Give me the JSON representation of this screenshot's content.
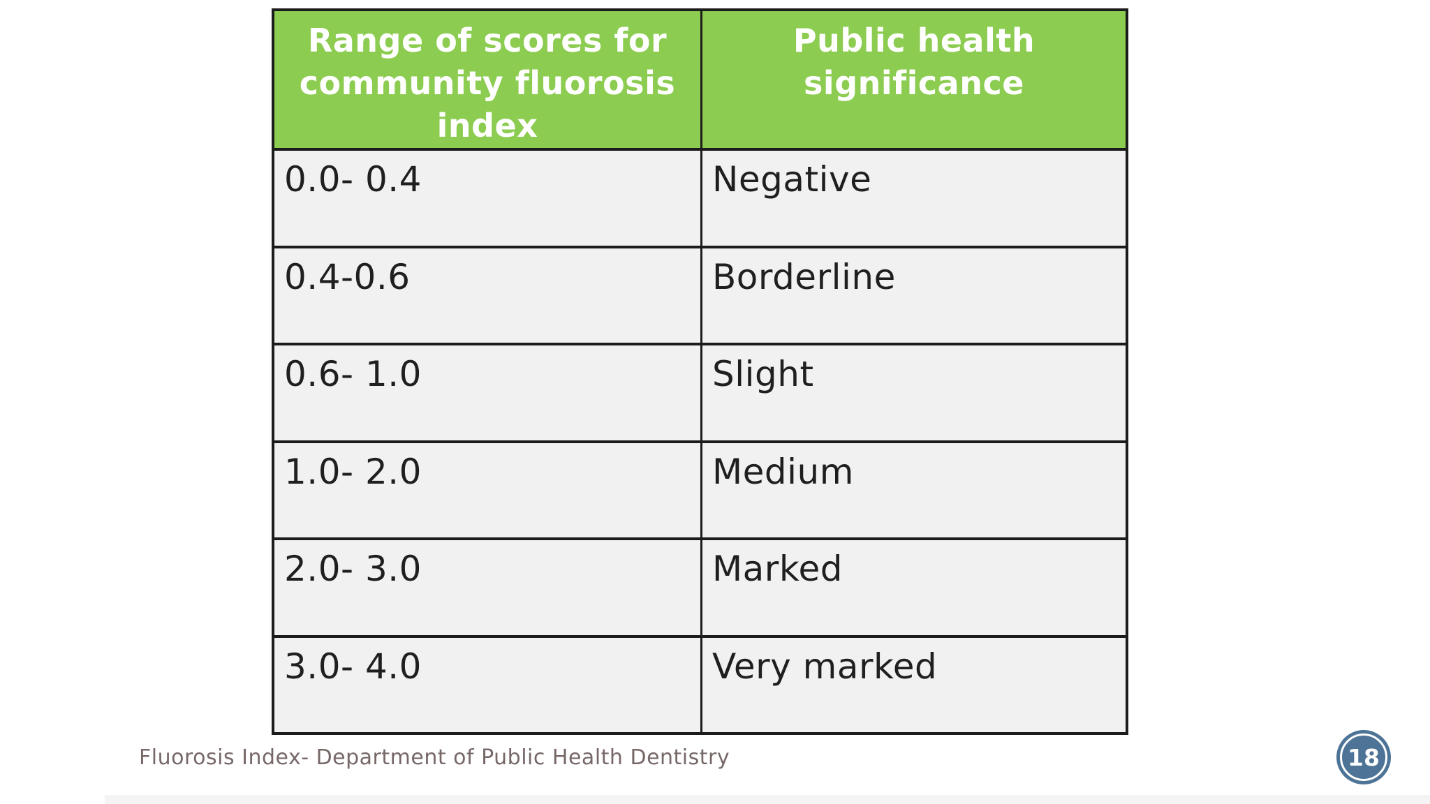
{
  "table": {
    "col_headers": [
      "Range of scores for community fluorosis index",
      "Public health significance"
    ],
    "rows": [
      {
        "range": "0.0- 0.4",
        "significance": "Negative"
      },
      {
        "range": "0.4-0.6",
        "significance": "Borderline"
      },
      {
        "range": "0.6- 1.0",
        "significance": "Slight"
      },
      {
        "range": "1.0- 2.0",
        "significance": "Medium"
      },
      {
        "range": "2.0- 3.0",
        "significance": "Marked"
      },
      {
        "range": "3.0- 4.0",
        "significance": "Very marked"
      }
    ]
  },
  "footer": {
    "caption": "Fluorosis Index- Department of Public Health Dentistry"
  },
  "page": {
    "number": "18"
  },
  "colors": {
    "header_bg": "#8ccc50",
    "header_text": "#ffffff",
    "row_bg": "#f1f1f1",
    "border": "#1c1c1c",
    "footer_text": "#776868",
    "badge_bg": "#4d7396",
    "badge_text": "#ffffff"
  }
}
